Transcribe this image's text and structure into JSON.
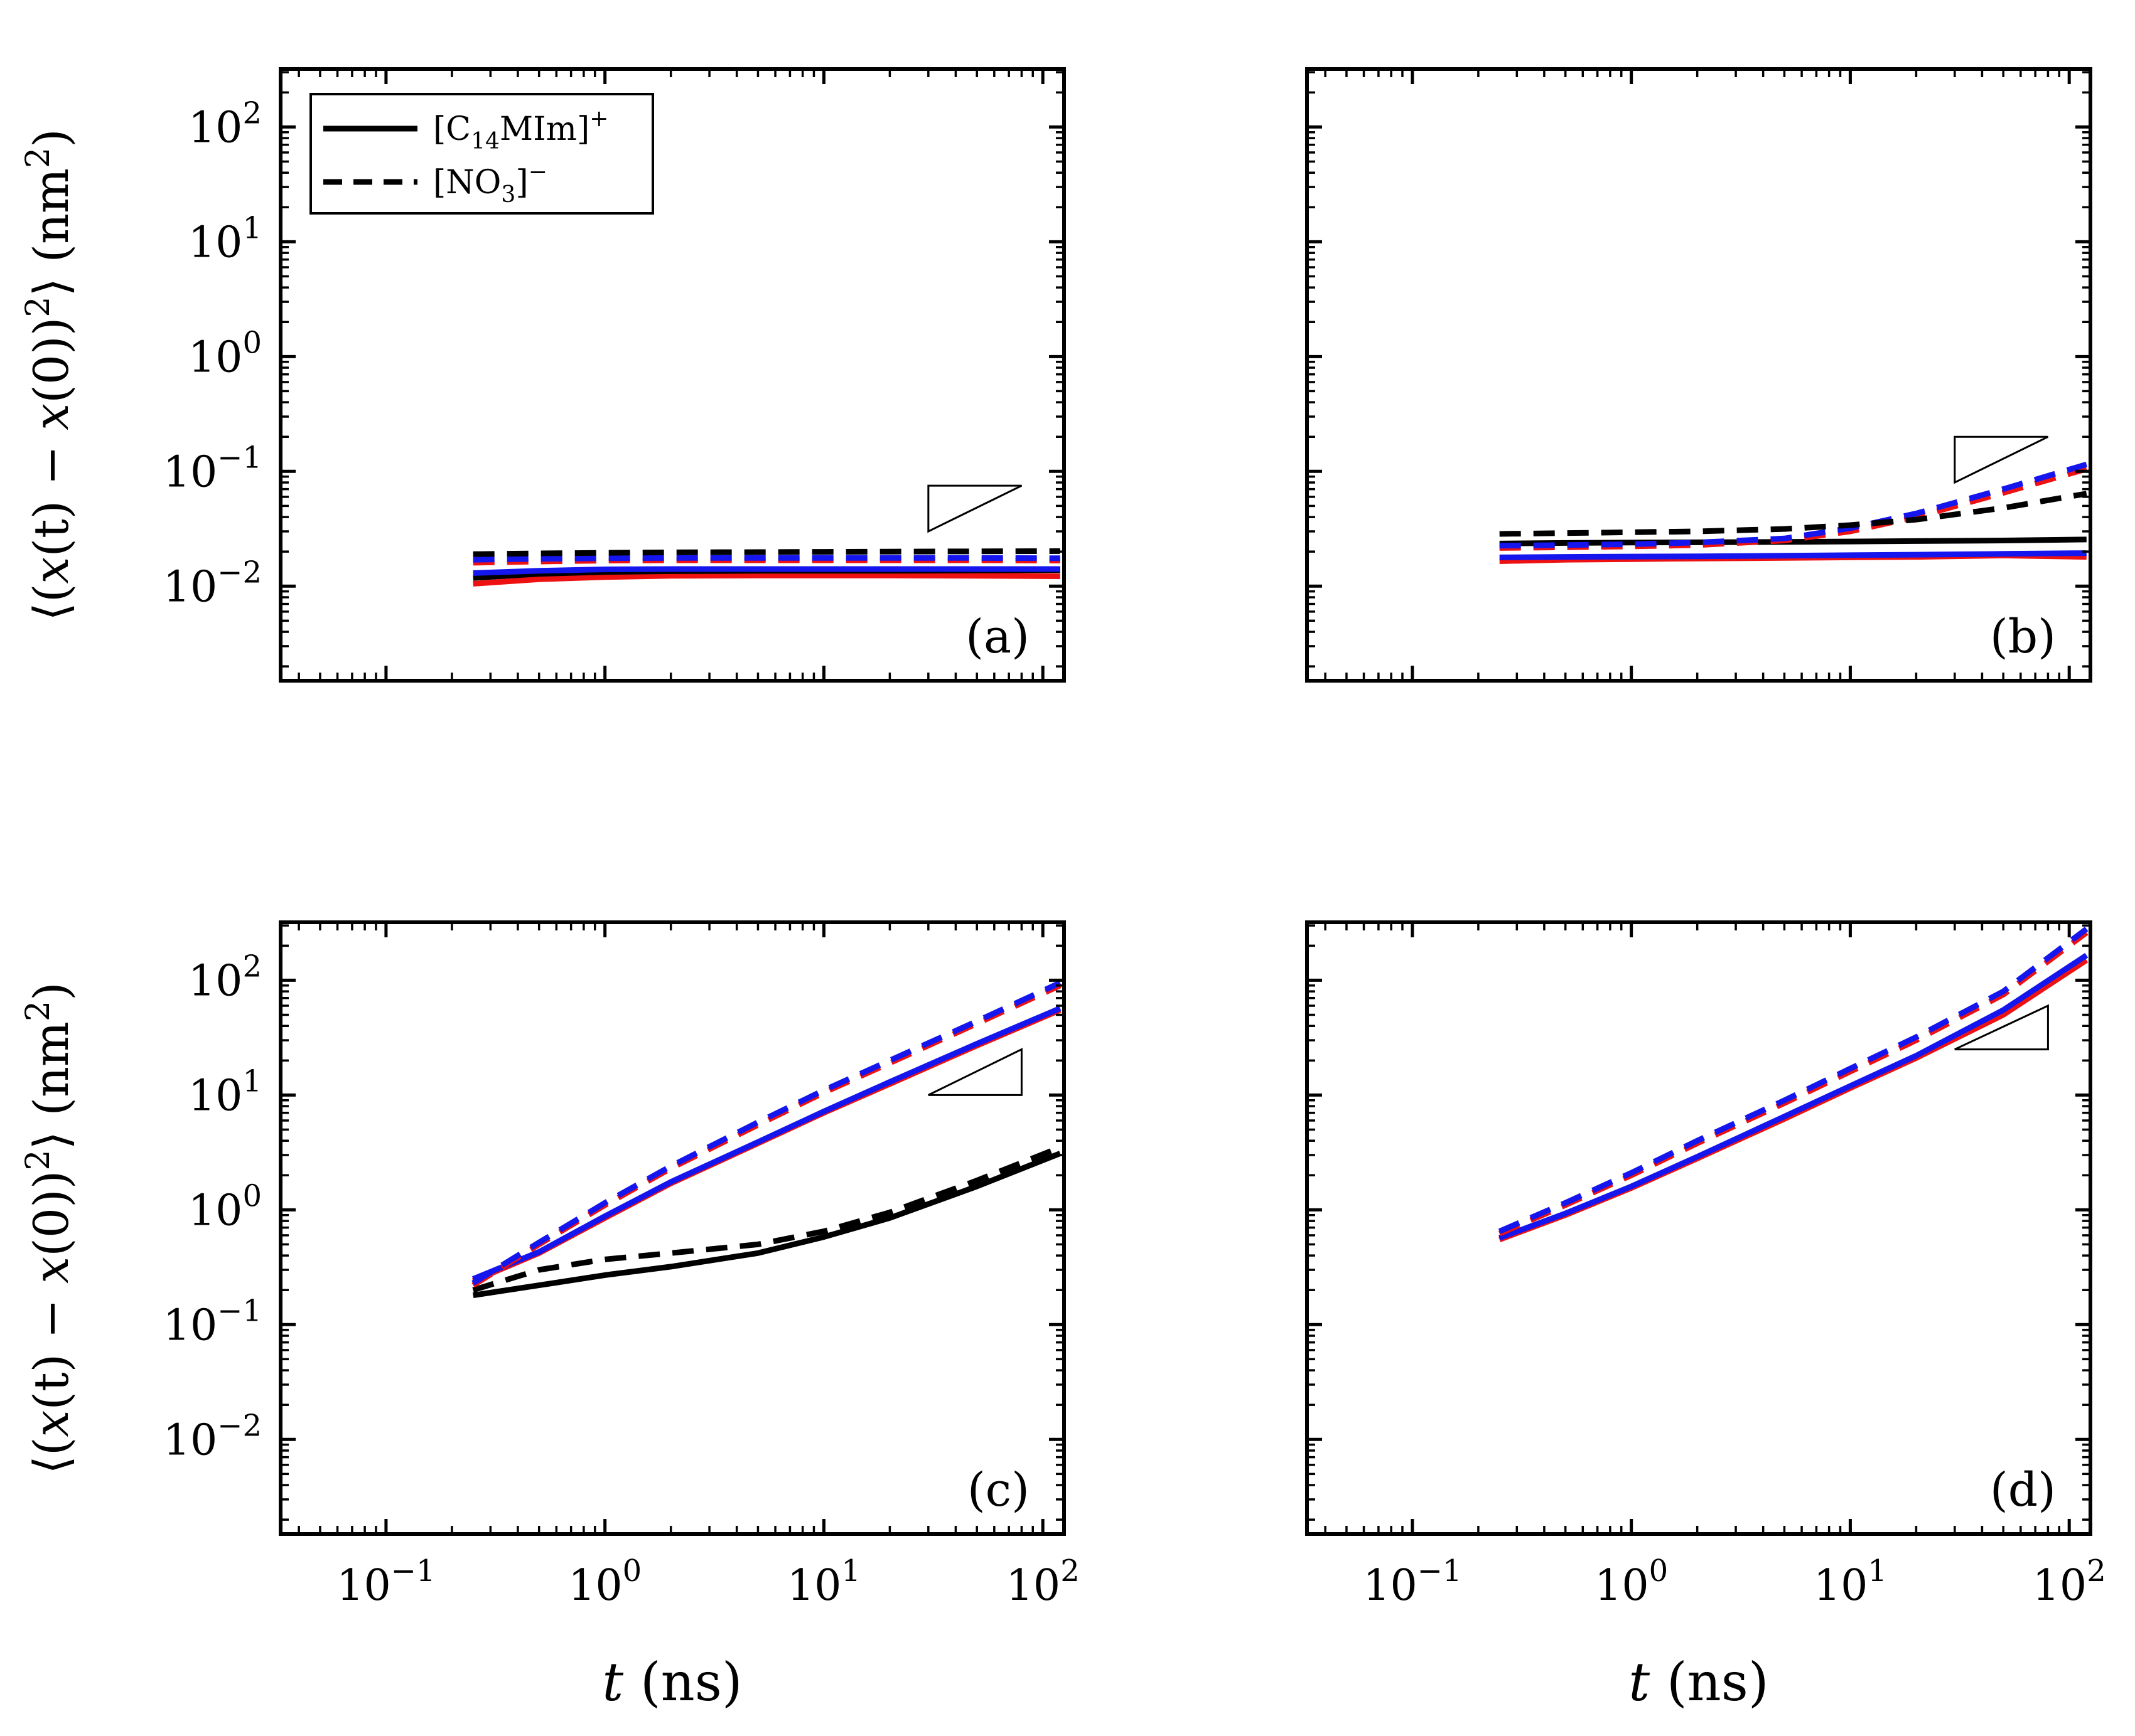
{
  "chart_data": {
    "type": "line",
    "layout": "2x2 grid",
    "xscale": "log",
    "yscale": "log",
    "xlim": [
      0.033,
      125
    ],
    "ylim": [
      0.0015,
      320
    ],
    "xticks": [
      0.1,
      1,
      10,
      100
    ],
    "yticks": [
      0.01,
      0.1,
      1,
      10,
      100
    ],
    "xtick_labels": [
      {
        "base": "10",
        "exp": "−1"
      },
      {
        "base": "10",
        "exp": "0"
      },
      {
        "base": "10",
        "exp": "1"
      },
      {
        "base": "10",
        "exp": "2"
      }
    ],
    "ytick_labels": [
      {
        "base": "10",
        "exp": "−2"
      },
      {
        "base": "10",
        "exp": "−1"
      },
      {
        "base": "10",
        "exp": "0"
      },
      {
        "base": "10",
        "exp": "1"
      },
      {
        "base": "10",
        "exp": "2"
      }
    ],
    "xlabel": {
      "var": "t",
      "unit": "(ns)"
    },
    "ylabel": {
      "left": "⟨(",
      "x1": "x",
      "t": "(t) − ",
      "x2": "x",
      "zero": "(0))",
      "sq": "2",
      "right": "⟩ (nm",
      "sq2": "2",
      "close": ")"
    },
    "legend": {
      "location": "upper-left of panel (a)",
      "entries": [
        {
          "style": "solid",
          "text": "[C",
          "sub": "14",
          "text2": "MIm]",
          "sup": "+"
        },
        {
          "style": "dashed",
          "text": "[NO",
          "sub": "3",
          "text2": "]",
          "sup": "−"
        }
      ]
    },
    "colors": {
      "black": "#000000",
      "red": "#ee1111",
      "blue": "#1515ee"
    },
    "panels": [
      {
        "label": "(a)",
        "slope_triangle": {
          "x": [
            30,
            80
          ],
          "y_low": 0.03,
          "y_high": 0.075,
          "slope": 1
        },
        "series": [
          {
            "color": "red",
            "style": "solid",
            "x": [
              0.25,
              0.5,
              1,
              2,
              5,
              10,
              20,
              50,
              120
            ],
            "y": [
              0.0105,
              0.0115,
              0.012,
              0.0123,
              0.0124,
              0.0124,
              0.0124,
              0.0123,
              0.0122
            ]
          },
          {
            "color": "black",
            "style": "solid",
            "x": [
              0.25,
              0.5,
              1,
              2,
              5,
              10,
              20,
              50,
              120
            ],
            "y": [
              0.0118,
              0.0128,
              0.0133,
              0.0135,
              0.0136,
              0.0136,
              0.0136,
              0.0137,
              0.0138
            ]
          },
          {
            "color": "blue",
            "style": "solid",
            "x": [
              0.25,
              0.5,
              1,
              2,
              5,
              10,
              20,
              50,
              120
            ],
            "y": [
              0.013,
              0.0136,
              0.014,
              0.0141,
              0.0141,
              0.0141,
              0.0141,
              0.0141,
              0.0141
            ]
          },
          {
            "color": "red",
            "style": "dashed",
            "x": [
              0.25,
              0.5,
              1,
              2,
              5,
              10,
              20,
              50,
              120
            ],
            "y": [
              0.016,
              0.0164,
              0.0167,
              0.0168,
              0.0168,
              0.0168,
              0.0168,
              0.0168,
              0.0167
            ]
          },
          {
            "color": "blue",
            "style": "dashed",
            "x": [
              0.25,
              0.5,
              1,
              2,
              5,
              10,
              20,
              50,
              120
            ],
            "y": [
              0.017,
              0.0173,
              0.0175,
              0.0176,
              0.0176,
              0.0176,
              0.0176,
              0.0176,
              0.0175
            ]
          },
          {
            "color": "black",
            "style": "dashed",
            "x": [
              0.25,
              0.5,
              1,
              2,
              5,
              10,
              20,
              50,
              120
            ],
            "y": [
              0.019,
              0.0193,
              0.0195,
              0.0197,
              0.0198,
              0.0199,
              0.02,
              0.0201,
              0.0202
            ]
          }
        ]
      },
      {
        "label": "(b)",
        "slope_triangle": {
          "x": [
            30,
            80
          ],
          "y_low": 0.08,
          "y_high": 0.2,
          "slope": 1
        },
        "series": [
          {
            "color": "red",
            "style": "solid",
            "x": [
              0.25,
              0.5,
              1,
              2,
              5,
              10,
              20,
              50,
              120
            ],
            "y": [
              0.0165,
              0.017,
              0.0172,
              0.0174,
              0.0176,
              0.0178,
              0.018,
              0.0185,
              0.018
            ]
          },
          {
            "color": "blue",
            "style": "solid",
            "x": [
              0.25,
              0.5,
              1,
              2,
              5,
              10,
              20,
              50,
              120
            ],
            "y": [
              0.0178,
              0.018,
              0.0181,
              0.0182,
              0.0184,
              0.0186,
              0.0188,
              0.0191,
              0.0194
            ]
          },
          {
            "color": "black",
            "style": "solid",
            "x": [
              0.25,
              0.5,
              1,
              2,
              5,
              10,
              20,
              50,
              120
            ],
            "y": [
              0.0235,
              0.0238,
              0.024,
              0.0241,
              0.0243,
              0.0245,
              0.0247,
              0.025,
              0.0255
            ]
          },
          {
            "color": "red",
            "style": "dashed",
            "x": [
              0.25,
              0.5,
              1,
              2,
              5,
              10,
              20,
              50,
              120
            ],
            "y": [
              0.0215,
              0.0218,
              0.0222,
              0.0228,
              0.025,
              0.03,
              0.04,
              0.065,
              0.105
            ]
          },
          {
            "color": "blue",
            "style": "dashed",
            "x": [
              0.25,
              0.5,
              1,
              2,
              5,
              10,
              20,
              50,
              120
            ],
            "y": [
              0.0225,
              0.0228,
              0.0232,
              0.024,
              0.026,
              0.032,
              0.043,
              0.07,
              0.115
            ]
          },
          {
            "color": "black",
            "style": "dashed",
            "x": [
              0.25,
              0.5,
              1,
              2,
              5,
              10,
              20,
              50,
              120
            ],
            "y": [
              0.0285,
              0.029,
              0.0295,
              0.03,
              0.0315,
              0.034,
              0.038,
              0.048,
              0.064
            ]
          }
        ]
      },
      {
        "label": "(c)",
        "slope_triangle": {
          "x": [
            30,
            80
          ],
          "y_low": 10,
          "y_high": 25,
          "slope": 1
        },
        "series": [
          {
            "color": "black",
            "style": "solid",
            "x": [
              0.25,
              0.5,
              1,
              2,
              5,
              10,
              20,
              50,
              120
            ],
            "y": [
              0.18,
              0.22,
              0.27,
              0.32,
              0.42,
              0.58,
              0.85,
              1.6,
              3.1
            ]
          },
          {
            "color": "black",
            "style": "dashed",
            "x": [
              0.25,
              0.5,
              1,
              2,
              5,
              10,
              20,
              50,
              120
            ],
            "y": [
              0.2,
              0.3,
              0.37,
              0.42,
              0.5,
              0.65,
              0.95,
              1.8,
              3.5
            ]
          },
          {
            "color": "red",
            "style": "solid",
            "x": [
              0.25,
              0.5,
              1,
              2,
              5,
              10,
              20,
              50,
              120
            ],
            "y": [
              0.24,
              0.42,
              0.85,
              1.7,
              3.8,
              7.0,
              12.5,
              27,
              55
            ]
          },
          {
            "color": "blue",
            "style": "solid",
            "x": [
              0.25,
              0.5,
              1,
              2,
              5,
              10,
              20,
              50,
              120
            ],
            "y": [
              0.25,
              0.43,
              0.88,
              1.75,
              3.9,
              7.2,
              13,
              28,
              57
            ]
          },
          {
            "color": "red",
            "style": "dashed",
            "x": [
              0.25,
              0.5,
              1,
              2,
              5,
              10,
              20,
              50,
              120
            ],
            "y": [
              0.22,
              0.5,
              1.1,
              2.3,
              5.5,
              10.5,
              19,
              42,
              90
            ]
          },
          {
            "color": "blue",
            "style": "dashed",
            "x": [
              0.25,
              0.5,
              1,
              2,
              5,
              10,
              20,
              50,
              120
            ],
            "y": [
              0.23,
              0.52,
              1.15,
              2.4,
              5.8,
              11,
              20,
              44,
              95
            ]
          }
        ]
      },
      {
        "label": "(d)",
        "slope_triangle": {
          "x": [
            30,
            80
          ],
          "y_low": 25,
          "y_high": 60,
          "slope": 1
        },
        "series": [
          {
            "color": "red",
            "style": "solid",
            "x": [
              0.25,
              0.5,
              1,
              2,
              5,
              10,
              20,
              50,
              120
            ],
            "y": [
              0.55,
              0.9,
              1.55,
              2.8,
              6.2,
              11.5,
              21,
              50,
              150
            ]
          },
          {
            "color": "blue",
            "style": "solid",
            "x": [
              0.25,
              0.5,
              1,
              2,
              5,
              10,
              20,
              50,
              120
            ],
            "y": [
              0.57,
              0.93,
              1.6,
              2.9,
              6.5,
              12,
              22,
              55,
              165
            ]
          },
          {
            "color": "red",
            "style": "dashed",
            "x": [
              0.25,
              0.5,
              1,
              2,
              5,
              10,
              20,
              50,
              120
            ],
            "y": [
              0.62,
              1.1,
              2.0,
              3.8,
              8.5,
              16,
              30,
              75,
              260
            ]
          },
          {
            "color": "blue",
            "style": "dashed",
            "x": [
              0.25,
              0.5,
              1,
              2,
              5,
              10,
              20,
              50,
              120
            ],
            "y": [
              0.65,
              1.15,
              2.1,
              4.0,
              9.0,
              17,
              32,
              80,
              280
            ]
          }
        ]
      }
    ]
  }
}
